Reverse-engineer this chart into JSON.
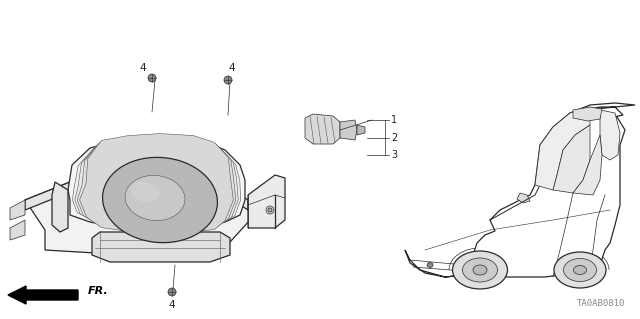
{
  "diagram_code": "TA0AB0810",
  "background_color": "#ffffff",
  "line_color": "#2a2a2a",
  "light_line_color": "#555555",
  "fill_color": "#f8f8f8",
  "medium_fill": "#e8e8e8",
  "dark_fill": "#cccccc",
  "text_color": "#222222",
  "fr_arrow_color": "#000000",
  "lw_main": 0.9,
  "lw_thin": 0.5,
  "lw_detail": 0.4
}
